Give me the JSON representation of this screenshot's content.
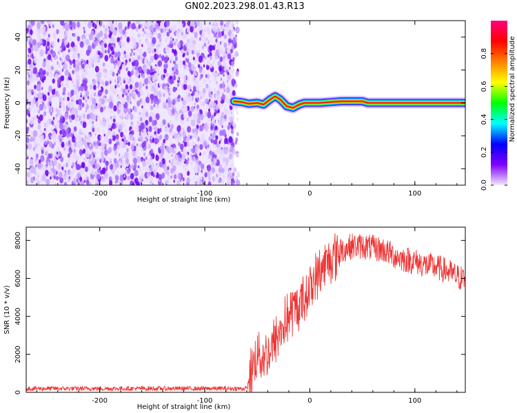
{
  "title": "GN02.2023.298.01.43.R13",
  "chart_data": [
    {
      "type": "heatmap",
      "xlabel": "Height of straight line (km)",
      "ylabel": "Frequency (Hz)",
      "xlim": [
        -270,
        148
      ],
      "ylim": [
        -50,
        50
      ],
      "xticks": [
        -200,
        -100,
        0,
        100
      ],
      "yticks": [
        -40,
        -20,
        0,
        20,
        40
      ],
      "noise_region_x": [
        -270,
        -72
      ],
      "signal_track": {
        "x": [
          -72,
          -65,
          -58,
          -50,
          -44,
          -38,
          -33,
          -28,
          -22,
          -16,
          -10,
          -5,
          0,
          10,
          20,
          30,
          40,
          50,
          55,
          60,
          80,
          100,
          120,
          148
        ],
        "y": [
          1,
          0.5,
          -0.5,
          0,
          -1,
          2,
          4,
          2,
          -2,
          -3,
          -1,
          0,
          0,
          0,
          0.5,
          1,
          1,
          1,
          0,
          0,
          0,
          0,
          0,
          0
        ]
      },
      "colorbar": {
        "label": "Normalized spectral amplitude",
        "range": [
          0,
          1
        ],
        "ticks": [
          "0.0",
          "0.2",
          "0.4",
          "0.6",
          "0.8"
        ],
        "colors": [
          "#f0e8ff",
          "#8000ff",
          "#0000ff",
          "#00ffff",
          "#00ff00",
          "#ffff00",
          "#ff8000",
          "#ff0000",
          "#ff0080"
        ]
      }
    },
    {
      "type": "line",
      "xlabel": "Height of straight line (km)",
      "ylabel": "SNR (10 * v/v)",
      "xlim": [
        -270,
        148
      ],
      "ylim": [
        0,
        8700
      ],
      "xticks": [
        -200,
        -100,
        0,
        100
      ],
      "yticks": [
        0,
        2000,
        4000,
        6000,
        8000
      ],
      "series": [
        {
          "color": "#ee3333",
          "x": [
            -270,
            -150,
            -60,
            -55,
            -50,
            -45,
            -40,
            -35,
            -30,
            -25,
            -20,
            -15,
            -10,
            -5,
            0,
            10,
            20,
            30,
            40,
            50,
            60,
            70,
            80,
            90,
            100,
            110,
            120,
            130,
            140,
            148
          ],
          "y": [
            200,
            200,
            200,
            1200,
            2200,
            1800,
            2000,
            2500,
            3000,
            3500,
            4000,
            4300,
            4600,
            5000,
            5500,
            6400,
            7100,
            7500,
            7700,
            7700,
            7600,
            7500,
            7200,
            7000,
            6900,
            6700,
            6600,
            6400,
            6100,
            5900
          ]
        }
      ]
    }
  ]
}
